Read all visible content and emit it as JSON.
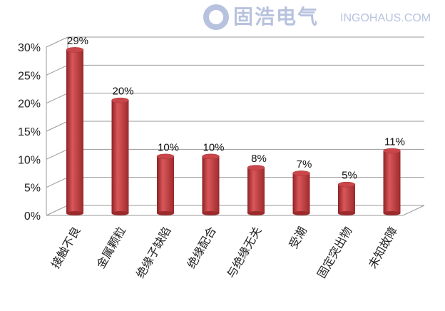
{
  "chart_data": {
    "type": "bar",
    "title": "",
    "xlabel": "",
    "ylabel": "",
    "categories": [
      "接触不良",
      "金属颗粒",
      "绝缘子缺陷",
      "绝缘配合",
      "与绝缘无关",
      "受潮",
      "固定突出物",
      "未知故障"
    ],
    "values": [
      29,
      20,
      10,
      10,
      8,
      7,
      5,
      11
    ],
    "data_labels": [
      "29%",
      "20%",
      "10%",
      "10%",
      "8%",
      "7%",
      "5%",
      "11%"
    ],
    "yticks": [
      "0%",
      "5%",
      "10%",
      "15%",
      "20%",
      "25%",
      "30%"
    ],
    "ylim": [
      0,
      30
    ],
    "grid": true,
    "style": "3d-cylinder",
    "bar_color": "#c0393b"
  },
  "watermark": {
    "cn": "固浩电气",
    "en": "INGOHAUS.COM"
  }
}
